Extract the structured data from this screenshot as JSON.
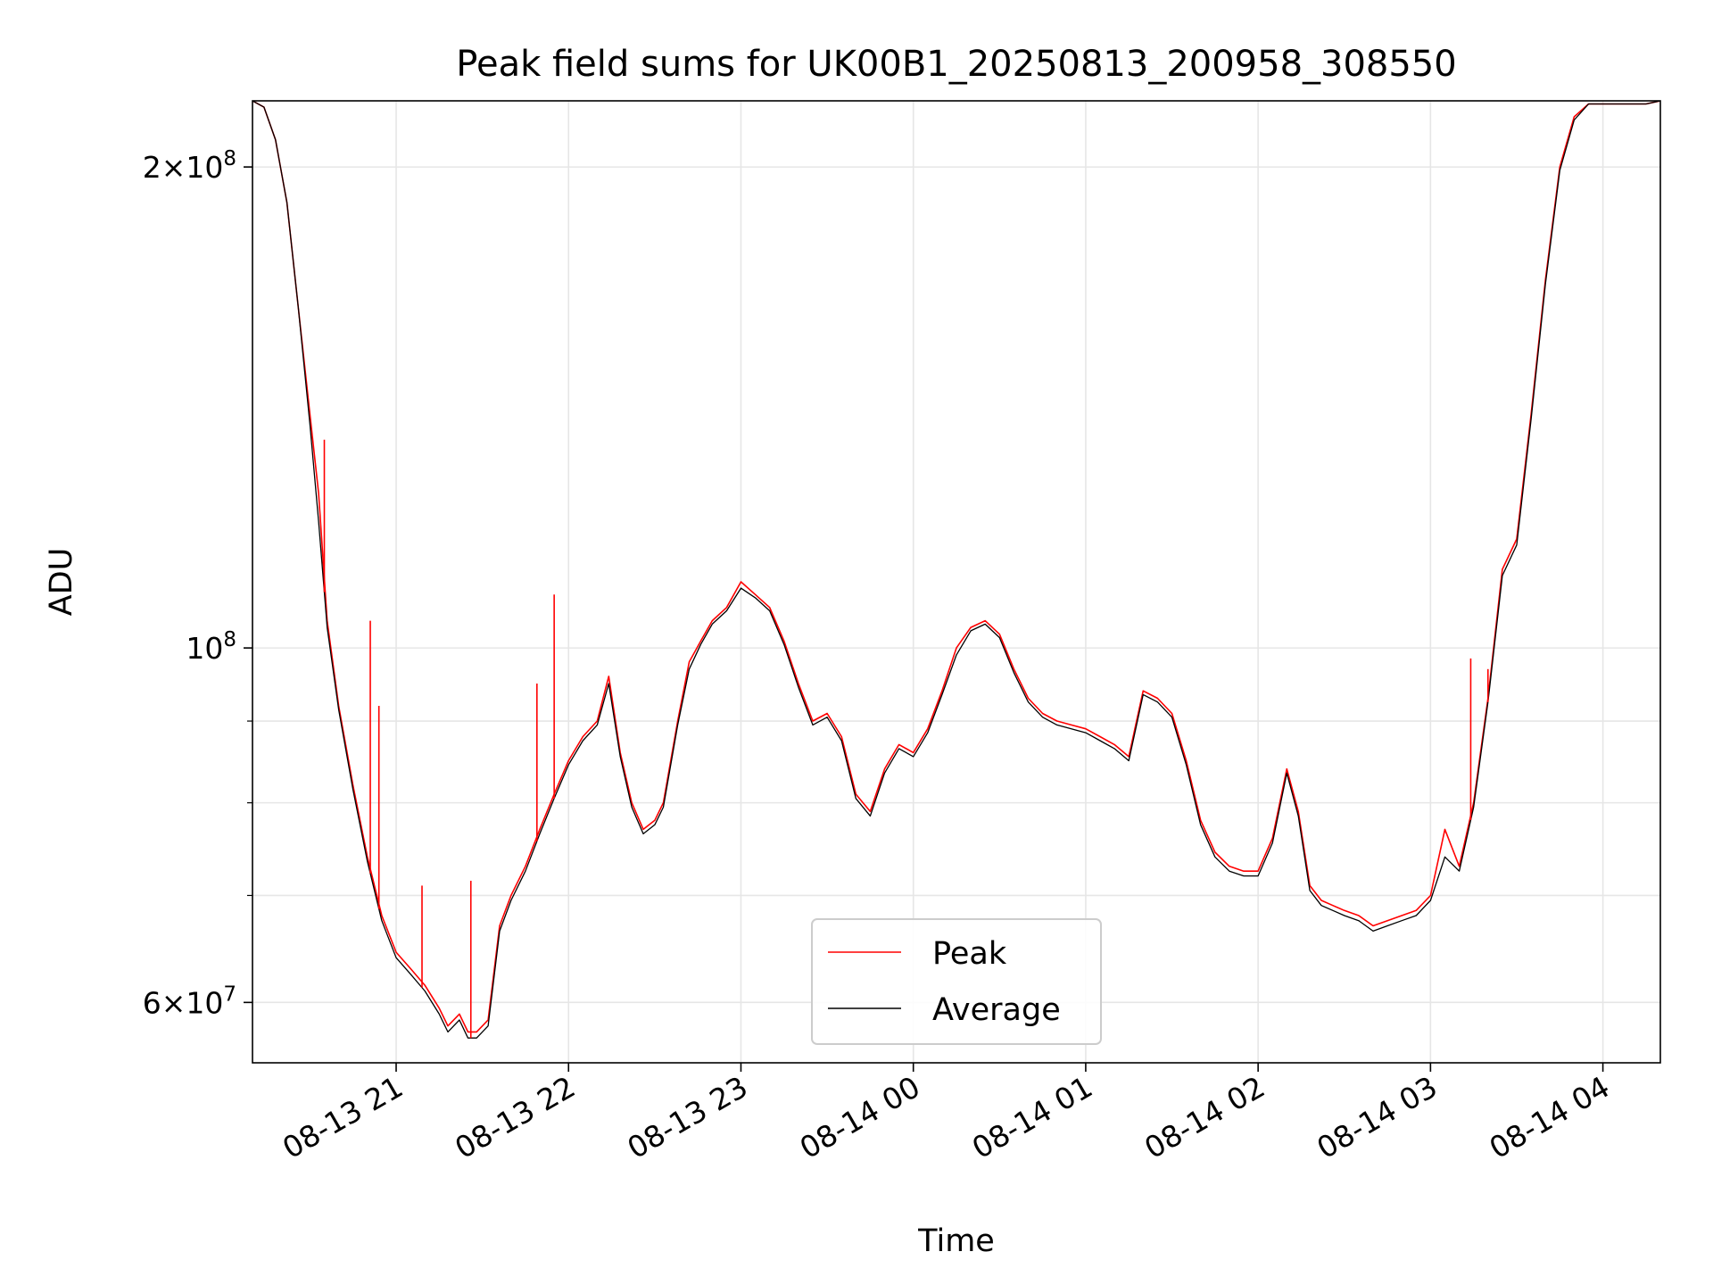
{
  "chart_data": {
    "type": "line",
    "title": "Peak field sums for UK00B1_20250813_200958_308550",
    "xlabel": "Time",
    "ylabel": "ADU",
    "y_scale": "log",
    "ylim": [
      55000000,
      220000000
    ],
    "xlim": [
      "2025-08-13 20:10",
      "2025-08-14 04:20"
    ],
    "grid": true,
    "legend_position": "lower center",
    "x_ticks": [
      {
        "value": "2025-08-13 21:00",
        "label": "08-13 21"
      },
      {
        "value": "2025-08-13 22:00",
        "label": "08-13 22"
      },
      {
        "value": "2025-08-13 23:00",
        "label": "08-13 23"
      },
      {
        "value": "2025-08-14 00:00",
        "label": "08-14 00"
      },
      {
        "value": "2025-08-14 01:00",
        "label": "08-14 01"
      },
      {
        "value": "2025-08-14 02:00",
        "label": "08-14 02"
      },
      {
        "value": "2025-08-14 03:00",
        "label": "08-14 03"
      },
      {
        "value": "2025-08-14 04:00",
        "label": "08-14 04"
      }
    ],
    "y_ticks": [
      {
        "value": 200000000,
        "base": "2×10",
        "exp": "8"
      },
      {
        "value": 100000000,
        "base": "10",
        "exp": "8"
      },
      {
        "value": 60000000,
        "base": "6×10",
        "exp": "7"
      }
    ],
    "y_minor_ticks": [
      70000000,
      80000000,
      90000000
    ],
    "series": [
      {
        "name": "Peak",
        "color": "#ff0000",
        "x": [
          "2025-08-13 20:10",
          "2025-08-13 20:14",
          "2025-08-13 20:18",
          "2025-08-13 20:22",
          "2025-08-13 20:26",
          "2025-08-13 20:30",
          "2025-08-13 20:33",
          "2025-08-13 20:36",
          "2025-08-13 20:40",
          "2025-08-13 20:45",
          "2025-08-13 20:50",
          "2025-08-13 20:55",
          "2025-08-13 21:00",
          "2025-08-13 21:05",
          "2025-08-13 21:10",
          "2025-08-13 21:15",
          "2025-08-13 21:18",
          "2025-08-13 21:22",
          "2025-08-13 21:25",
          "2025-08-13 21:28",
          "2025-08-13 21:32",
          "2025-08-13 21:36",
          "2025-08-13 21:40",
          "2025-08-13 21:45",
          "2025-08-13 21:50",
          "2025-08-13 21:55",
          "2025-08-13 22:00",
          "2025-08-13 22:05",
          "2025-08-13 22:10",
          "2025-08-13 22:14",
          "2025-08-13 22:18",
          "2025-08-13 22:22",
          "2025-08-13 22:26",
          "2025-08-13 22:30",
          "2025-08-13 22:33",
          "2025-08-13 22:38",
          "2025-08-13 22:42",
          "2025-08-13 22:46",
          "2025-08-13 22:50",
          "2025-08-13 22:55",
          "2025-08-13 23:00",
          "2025-08-13 23:05",
          "2025-08-13 23:10",
          "2025-08-13 23:15",
          "2025-08-13 23:20",
          "2025-08-13 23:25",
          "2025-08-13 23:30",
          "2025-08-13 23:35",
          "2025-08-13 23:40",
          "2025-08-13 23:45",
          "2025-08-13 23:50",
          "2025-08-13 23:55",
          "2025-08-14 00:00",
          "2025-08-14 00:05",
          "2025-08-14 00:10",
          "2025-08-14 00:15",
          "2025-08-14 00:20",
          "2025-08-14 00:25",
          "2025-08-14 00:30",
          "2025-08-14 00:35",
          "2025-08-14 00:40",
          "2025-08-14 00:45",
          "2025-08-14 00:50",
          "2025-08-14 00:55",
          "2025-08-14 01:00",
          "2025-08-14 01:05",
          "2025-08-14 01:10",
          "2025-08-14 01:15",
          "2025-08-14 01:20",
          "2025-08-14 01:25",
          "2025-08-14 01:30",
          "2025-08-14 01:35",
          "2025-08-14 01:40",
          "2025-08-14 01:45",
          "2025-08-14 01:50",
          "2025-08-14 01:55",
          "2025-08-14 02:00",
          "2025-08-14 02:05",
          "2025-08-14 02:10",
          "2025-08-14 02:14",
          "2025-08-14 02:18",
          "2025-08-14 02:22",
          "2025-08-14 02:26",
          "2025-08-14 02:30",
          "2025-08-14 02:35",
          "2025-08-14 02:40",
          "2025-08-14 02:45",
          "2025-08-14 02:50",
          "2025-08-14 02:55",
          "2025-08-14 03:00",
          "2025-08-14 03:05",
          "2025-08-14 03:10",
          "2025-08-14 03:15",
          "2025-08-14 03:20",
          "2025-08-14 03:25",
          "2025-08-14 03:30",
          "2025-08-14 03:35",
          "2025-08-14 03:40",
          "2025-08-14 03:45",
          "2025-08-14 03:50",
          "2025-08-14 03:55",
          "2025-08-14 04:00",
          "2025-08-14 04:05",
          "2025-08-14 04:10",
          "2025-08-14 04:15",
          "2025-08-14 04:20"
        ],
        "y": [
          220000000,
          218000000,
          208000000,
          190000000,
          163000000,
          140000000,
          125000000,
          104000000,
          92000000,
          82000000,
          74000000,
          68000000,
          64500000,
          63000000,
          61500000,
          59500000,
          58000000,
          59000000,
          57500000,
          57500000,
          58500000,
          67000000,
          70000000,
          73000000,
          77000000,
          81000000,
          85000000,
          88000000,
          90000000,
          96000000,
          86000000,
          80000000,
          77000000,
          78000000,
          80000000,
          90000000,
          98000000,
          101000000,
          104000000,
          106000000,
          110000000,
          108000000,
          106000000,
          101000000,
          95000000,
          90000000,
          91000000,
          88000000,
          81000000,
          79000000,
          84000000,
          87000000,
          86000000,
          89000000,
          94000000,
          100000000,
          103000000,
          104000000,
          102000000,
          97000000,
          93000000,
          91000000,
          90000000,
          89500000,
          89000000,
          88000000,
          87000000,
          85500000,
          94000000,
          93000000,
          91000000,
          85000000,
          78000000,
          74500000,
          73000000,
          72500000,
          72500000,
          76000000,
          84000000,
          79000000,
          71000000,
          69500000,
          69000000,
          68500000,
          68000000,
          67000000,
          67500000,
          68000000,
          68500000,
          70000000,
          77000000,
          73000000,
          80000000,
          93000000,
          112000000,
          117000000,
          140000000,
          170000000,
          200000000,
          215000000,
          219000000,
          219000000,
          219000000,
          219000000,
          219000000,
          220000000
        ]
      },
      {
        "name": "Average",
        "color": "#000000",
        "x": [
          "2025-08-13 20:10",
          "2025-08-13 20:14",
          "2025-08-13 20:18",
          "2025-08-13 20:22",
          "2025-08-13 20:26",
          "2025-08-13 20:30",
          "2025-08-13 20:33",
          "2025-08-13 20:36",
          "2025-08-13 20:40",
          "2025-08-13 20:45",
          "2025-08-13 20:50",
          "2025-08-13 20:55",
          "2025-08-13 21:00",
          "2025-08-13 21:05",
          "2025-08-13 21:10",
          "2025-08-13 21:15",
          "2025-08-13 21:18",
          "2025-08-13 21:22",
          "2025-08-13 21:25",
          "2025-08-13 21:28",
          "2025-08-13 21:32",
          "2025-08-13 21:36",
          "2025-08-13 21:40",
          "2025-08-13 21:45",
          "2025-08-13 21:50",
          "2025-08-13 21:55",
          "2025-08-13 22:00",
          "2025-08-13 22:05",
          "2025-08-13 22:10",
          "2025-08-13 22:14",
          "2025-08-13 22:18",
          "2025-08-13 22:22",
          "2025-08-13 22:26",
          "2025-08-13 22:30",
          "2025-08-13 22:33",
          "2025-08-13 22:38",
          "2025-08-13 22:42",
          "2025-08-13 22:46",
          "2025-08-13 22:50",
          "2025-08-13 22:55",
          "2025-08-13 23:00",
          "2025-08-13 23:05",
          "2025-08-13 23:10",
          "2025-08-13 23:15",
          "2025-08-13 23:20",
          "2025-08-13 23:25",
          "2025-08-13 23:30",
          "2025-08-13 23:35",
          "2025-08-13 23:40",
          "2025-08-13 23:45",
          "2025-08-13 23:50",
          "2025-08-13 23:55",
          "2025-08-14 00:00",
          "2025-08-14 00:05",
          "2025-08-14 00:10",
          "2025-08-14 00:15",
          "2025-08-14 00:20",
          "2025-08-14 00:25",
          "2025-08-14 00:30",
          "2025-08-14 00:35",
          "2025-08-14 00:40",
          "2025-08-14 00:45",
          "2025-08-14 00:50",
          "2025-08-14 00:55",
          "2025-08-14 01:00",
          "2025-08-14 01:05",
          "2025-08-14 01:10",
          "2025-08-14 01:15",
          "2025-08-14 01:20",
          "2025-08-14 01:25",
          "2025-08-14 01:30",
          "2025-08-14 01:35",
          "2025-08-14 01:40",
          "2025-08-14 01:45",
          "2025-08-14 01:50",
          "2025-08-14 01:55",
          "2025-08-14 02:00",
          "2025-08-14 02:05",
          "2025-08-14 02:10",
          "2025-08-14 02:14",
          "2025-08-14 02:18",
          "2025-08-14 02:22",
          "2025-08-14 02:26",
          "2025-08-14 02:30",
          "2025-08-14 02:35",
          "2025-08-14 02:40",
          "2025-08-14 02:45",
          "2025-08-14 02:50",
          "2025-08-14 02:55",
          "2025-08-14 03:00",
          "2025-08-14 03:05",
          "2025-08-14 03:10",
          "2025-08-14 03:15",
          "2025-08-14 03:20",
          "2025-08-14 03:25",
          "2025-08-14 03:30",
          "2025-08-14 03:35",
          "2025-08-14 03:40",
          "2025-08-14 03:45",
          "2025-08-14 03:50",
          "2025-08-14 03:55",
          "2025-08-14 04:00",
          "2025-08-14 04:05",
          "2025-08-14 04:10",
          "2025-08-14 04:15",
          "2025-08-14 04:20"
        ],
        "y": [
          220000000,
          218000000,
          208000000,
          190000000,
          163000000,
          138000000,
          120000000,
          103000000,
          91500000,
          81500000,
          73500000,
          67500000,
          64000000,
          62500000,
          61000000,
          59000000,
          57500000,
          58500000,
          57000000,
          57000000,
          58000000,
          66500000,
          69500000,
          72500000,
          76500000,
          80500000,
          84500000,
          87500000,
          89500000,
          95000000,
          85500000,
          79500000,
          76500000,
          77500000,
          79500000,
          89500000,
          97000000,
          100500000,
          103500000,
          105500000,
          109000000,
          107500000,
          105500000,
          100500000,
          94500000,
          89500000,
          90500000,
          87500000,
          80500000,
          78500000,
          83500000,
          86500000,
          85500000,
          88500000,
          93500000,
          99000000,
          102500000,
          103500000,
          101500000,
          96500000,
          92500000,
          90500000,
          89500000,
          89000000,
          88500000,
          87500000,
          86500000,
          85000000,
          93500000,
          92500000,
          90500000,
          84500000,
          77500000,
          74000000,
          72500000,
          72000000,
          72000000,
          75500000,
          83500000,
          78500000,
          70500000,
          69000000,
          68500000,
          68000000,
          67500000,
          66500000,
          67000000,
          67500000,
          68000000,
          69500000,
          74000000,
          72500000,
          79500000,
          92500000,
          111000000,
          116000000,
          139000000,
          169000000,
          199000000,
          214000000,
          219000000,
          219000000,
          219000000,
          219000000,
          219000000,
          220000000
        ]
      }
    ],
    "peak_spikes": [
      {
        "x": "2025-08-13 20:35",
        "y": 135000000
      },
      {
        "x": "2025-08-13 20:51",
        "y": 104000000
      },
      {
        "x": "2025-08-13 20:54",
        "y": 92000000
      },
      {
        "x": "2025-08-13 21:09",
        "y": 71000000
      },
      {
        "x": "2025-08-13 21:26",
        "y": 71500000
      },
      {
        "x": "2025-08-13 21:49",
        "y": 95000000
      },
      {
        "x": "2025-08-13 21:55",
        "y": 108000000
      },
      {
        "x": "2025-08-14 03:14",
        "y": 98500000
      },
      {
        "x": "2025-08-14 03:20",
        "y": 97000000
      }
    ]
  }
}
